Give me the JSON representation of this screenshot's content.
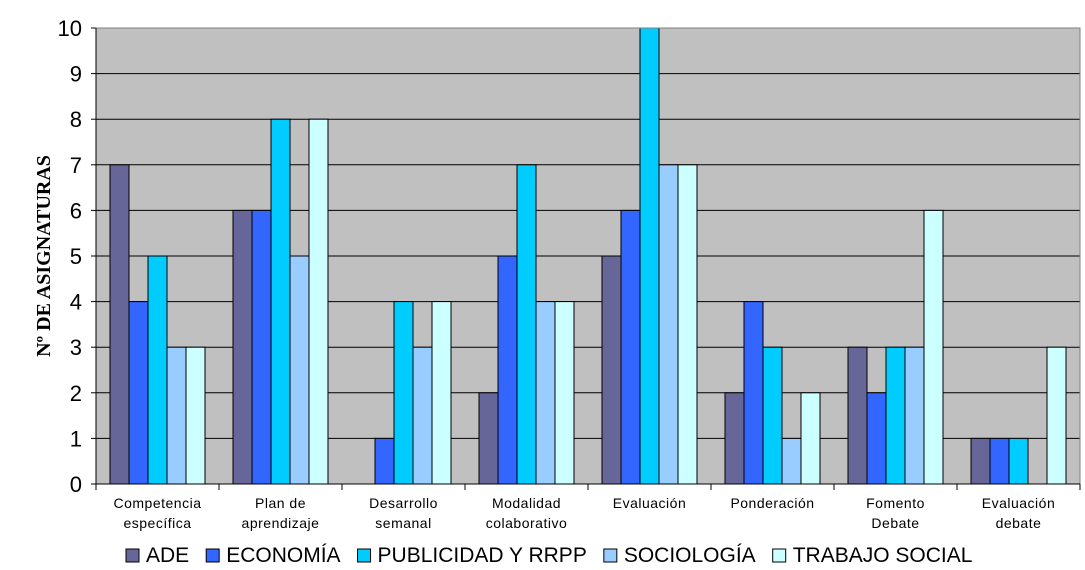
{
  "chart_data": {
    "type": "bar",
    "title": "",
    "xlabel": "",
    "ylabel": "Nº DE ASIGNATURAS",
    "ylim": [
      0,
      10
    ],
    "yticks": [
      "0",
      "1",
      "2",
      "3",
      "4",
      "5",
      "6",
      "7",
      "8",
      "9",
      "10"
    ],
    "grid": true,
    "legend_position": "bottom",
    "categories": [
      [
        "Competencia",
        "específica"
      ],
      [
        "Plan de",
        "aprendizaje"
      ],
      [
        "Desarrollo",
        "semanal"
      ],
      [
        "Modalidad",
        "colaborativo"
      ],
      [
        "Evaluación"
      ],
      [
        "Ponderación"
      ],
      [
        "Fomento",
        "Debate"
      ],
      [
        "Evaluación",
        "debate"
      ]
    ],
    "series": [
      {
        "name": "ADE",
        "color": "#666699",
        "values": [
          7,
          6,
          0,
          2,
          5,
          2,
          3,
          1
        ]
      },
      {
        "name": "ECONOMÍA",
        "color": "#3366FF",
        "values": [
          4,
          6,
          1,
          5,
          6,
          4,
          2,
          1
        ]
      },
      {
        "name": "PUBLICIDAD Y RRPP",
        "color": "#00CCFF",
        "values": [
          5,
          8,
          4,
          7,
          10,
          3,
          3,
          1
        ]
      },
      {
        "name": "SOCIOLOGÍA",
        "color": "#99CCFF",
        "values": [
          3,
          5,
          3,
          4,
          7,
          1,
          3,
          0
        ]
      },
      {
        "name": "TRABAJO SOCIAL",
        "color": "#CCFFFF",
        "values": [
          3,
          8,
          4,
          4,
          7,
          2,
          6,
          3
        ]
      }
    ],
    "plot_background": "#C0C0C0"
  }
}
